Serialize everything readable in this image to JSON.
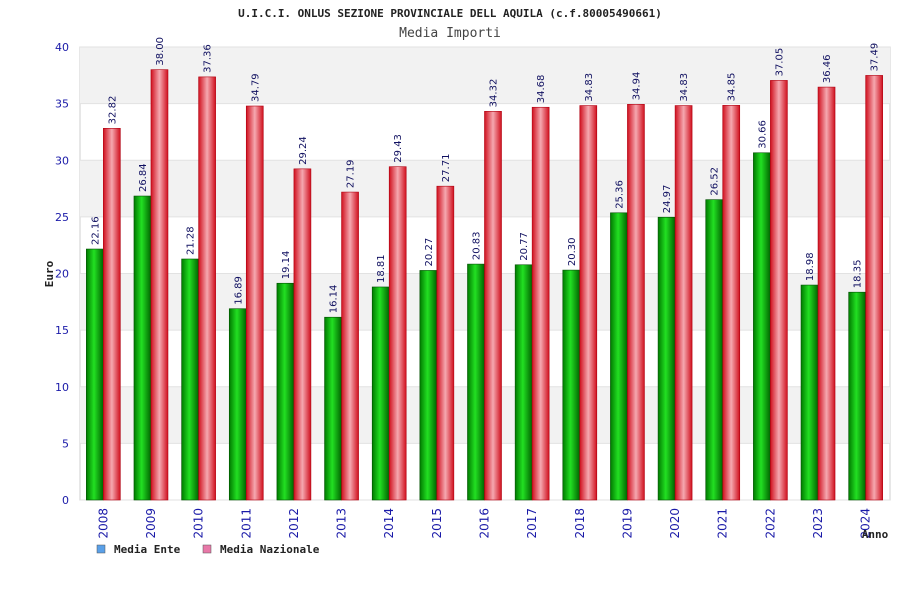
{
  "chart_data": {
    "type": "bar",
    "title": "U.I.C.I. ONLUS SEZIONE PROVINCIALE DELL AQUILA (c.f.80005490661)",
    "subtitle": "Media Importi",
    "xlabel": "Anno",
    "ylabel": "Euro",
    "ylim": [
      0,
      40
    ],
    "yticks": [
      "0",
      "5",
      "10",
      "15",
      "20",
      "25",
      "30",
      "35",
      "40"
    ],
    "grid": true,
    "legend_position": "bottom-left",
    "categories": [
      "2008",
      "2009",
      "2010",
      "2011",
      "2012",
      "2013",
      "2014",
      "2015",
      "2016",
      "2017",
      "2018",
      "2019",
      "2020",
      "2021",
      "2022",
      "2023",
      "2024"
    ],
    "series": [
      {
        "name": "Media Ente",
        "color": "#00a000",
        "legend_color": "#5aa0e8",
        "values": [
          22.16,
          26.84,
          21.28,
          16.89,
          19.14,
          16.14,
          18.81,
          20.27,
          20.83,
          20.77,
          20.3,
          25.36,
          24.97,
          26.52,
          30.66,
          18.98,
          18.35
        ],
        "labels": [
          "22.16",
          "26.84",
          "21.28",
          "16.89",
          "19.14",
          "16.14",
          "18.81",
          "20.27",
          "20.83",
          "20.77",
          "20.30",
          "25.36",
          "24.97",
          "26.52",
          "30.66",
          "18.98",
          "18.35"
        ]
      },
      {
        "name": "Media Nazionale",
        "color": "#e81828",
        "legend_color": "#e878a8",
        "values": [
          32.82,
          38.0,
          37.36,
          34.79,
          29.24,
          27.19,
          29.43,
          27.71,
          34.32,
          34.68,
          34.83,
          34.94,
          34.83,
          34.85,
          37.05,
          36.46,
          37.49
        ],
        "labels": [
          "32.82",
          "38.00",
          "37.36",
          "34.79",
          "29.24",
          "27.19",
          "29.43",
          "27.71",
          "34.32",
          "34.68",
          "34.83",
          "34.94",
          "34.83",
          "34.85",
          "37.05",
          "36.46",
          "37.49"
        ]
      }
    ]
  }
}
